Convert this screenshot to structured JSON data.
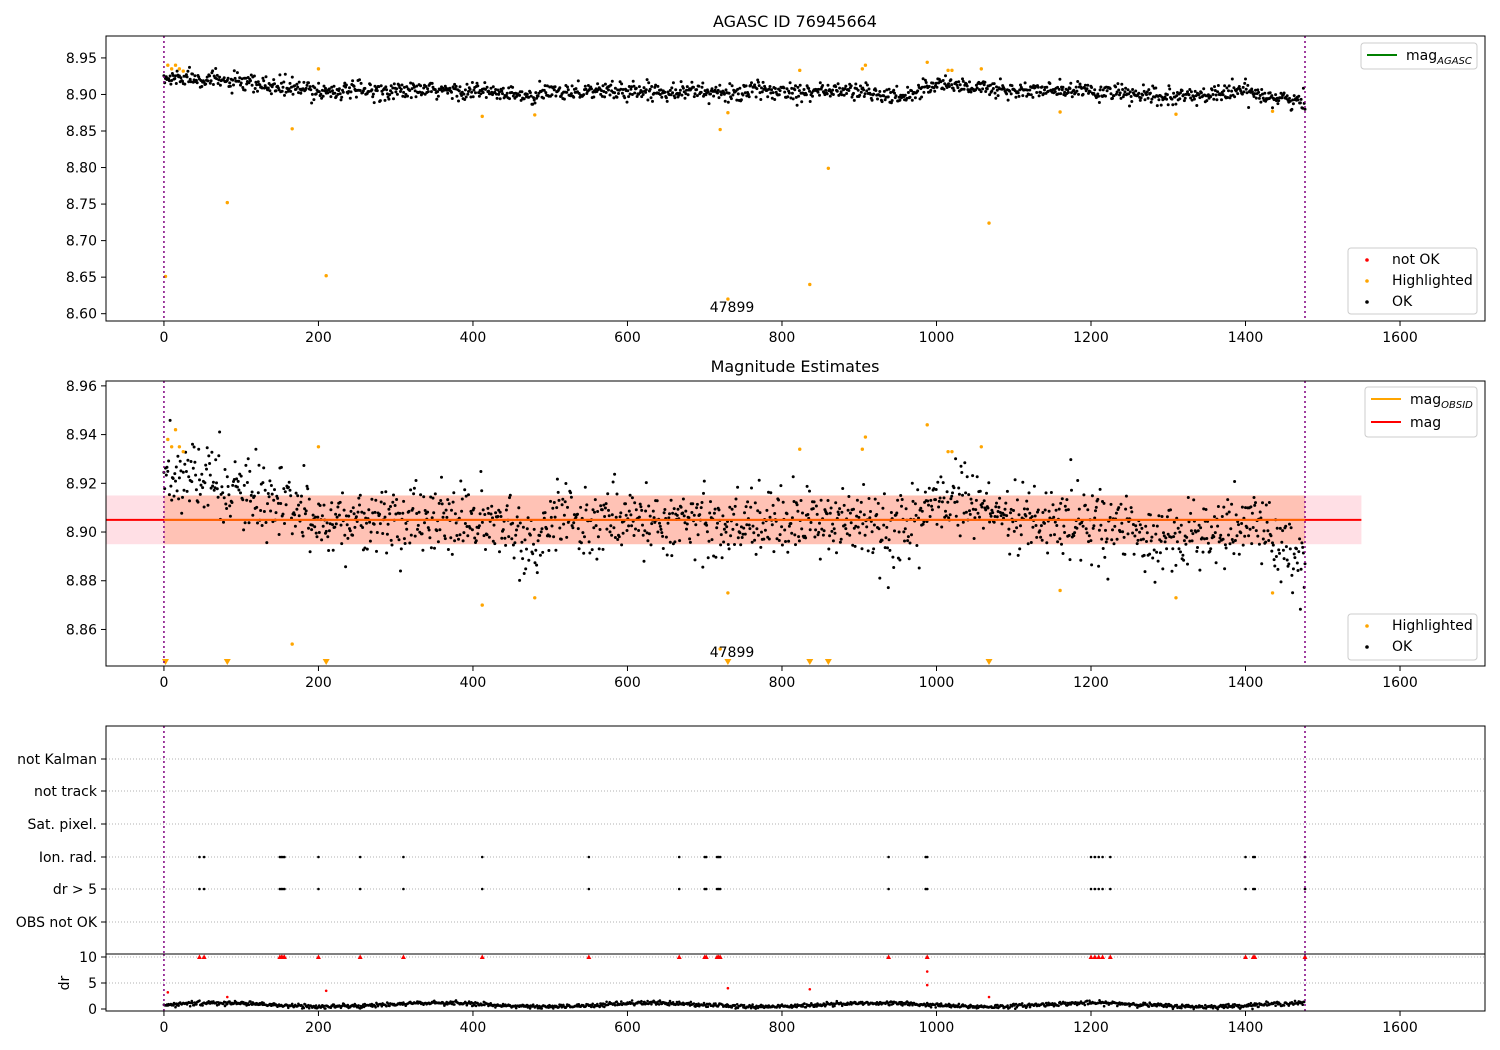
{
  "chart_data": [
    {
      "type": "scatter",
      "title": "AGASC ID 76945664",
      "xlim": [
        -75,
        1710
      ],
      "ylim": [
        8.59,
        8.98
      ],
      "xticks": [
        "0",
        "200",
        "400",
        "600",
        "800",
        "1000",
        "1200",
        "1400",
        "1600"
      ],
      "yticks": [
        "8.60",
        "8.65",
        "8.70",
        "8.75",
        "8.80",
        "8.85",
        "8.90",
        "8.95"
      ],
      "obs_boundaries": [
        0,
        1477
      ],
      "obs_label": "47899",
      "legend_top": [
        {
          "label": "mag",
          "sub": "AGASC",
          "color": "#008000",
          "kind": "line"
        }
      ],
      "legend_bottom": [
        {
          "label": "not OK",
          "color": "#ff0000",
          "kind": "dot"
        },
        {
          "label": "Highlighted",
          "color": "#ffa500",
          "kind": "dot"
        },
        {
          "label": "OK",
          "color": "#000000",
          "kind": "dot"
        }
      ],
      "series": [
        {
          "name": "OK",
          "color": "#000000",
          "n": 1477,
          "x_range": [
            0,
            1477
          ],
          "trend_x": [
            0,
            30,
            100,
            200,
            300,
            400,
            450,
            480,
            500,
            600,
            700,
            720,
            760,
            900,
            950,
            1000,
            1100,
            1200,
            1300,
            1400,
            1477
          ],
          "trend_y": [
            8.92,
            8.925,
            8.915,
            8.905,
            8.905,
            8.905,
            8.9,
            8.895,
            8.905,
            8.905,
            8.905,
            8.9,
            8.905,
            8.905,
            8.895,
            8.915,
            8.905,
            8.905,
            8.895,
            8.905,
            8.888
          ],
          "noise": 0.006
        },
        {
          "name": "Highlighted",
          "color": "#ffa500",
          "points": [
            [
              2,
              8.651
            ],
            [
              5,
              8.94
            ],
            [
              10,
              8.935
            ],
            [
              15,
              8.94
            ],
            [
              20,
              8.935
            ],
            [
              25,
              8.932
            ],
            [
              82,
              8.752
            ],
            [
              166,
              8.853
            ],
            [
              200,
              8.935
            ],
            [
              210,
              8.652
            ],
            [
              412,
              8.87
            ],
            [
              480,
              8.872
            ],
            [
              720,
              8.852
            ],
            [
              730,
              8.875
            ],
            [
              730,
              8.62
            ],
            [
              823,
              8.933
            ],
            [
              836,
              8.64
            ],
            [
              860,
              8.799
            ],
            [
              904,
              8.935
            ],
            [
              908,
              8.94
            ],
            [
              988,
              8.944
            ],
            [
              1015,
              8.933
            ],
            [
              1020,
              8.933
            ],
            [
              1058,
              8.935
            ],
            [
              1068,
              8.724
            ],
            [
              1160,
              8.876
            ],
            [
              1310,
              8.873
            ],
            [
              1435,
              8.877
            ]
          ]
        }
      ]
    },
    {
      "type": "scatter",
      "title": "Magnitude Estimates",
      "xlim": [
        -75,
        1710
      ],
      "ylim": [
        8.845,
        8.962
      ],
      "xticks": [
        "0",
        "200",
        "400",
        "600",
        "800",
        "1000",
        "1200",
        "1400",
        "1600"
      ],
      "yticks": [
        "8.86",
        "8.88",
        "8.90",
        "8.92",
        "8.94",
        "8.96"
      ],
      "obs_boundaries": [
        0,
        1477
      ],
      "obs_label": "47899",
      "mag_line": 8.905,
      "band_outer": [
        8.895,
        8.915
      ],
      "band_outer_x": [
        -75,
        1550
      ],
      "band_inner": [
        8.895,
        8.915
      ],
      "band_inner_x": [
        0,
        1477
      ],
      "legend_top": [
        {
          "label": "mag",
          "sub": "OBSID",
          "color": "#ffa500",
          "kind": "line"
        },
        {
          "label": "mag",
          "sub": "",
          "color": "#ff0000",
          "kind": "line"
        }
      ],
      "legend_bottom": [
        {
          "label": "Highlighted",
          "color": "#ffa500",
          "kind": "dot"
        },
        {
          "label": "OK",
          "color": "#000000",
          "kind": "dot"
        }
      ],
      "series": [
        {
          "name": "OK",
          "color": "#000000",
          "n": 1477,
          "x_range": [
            0,
            1477
          ],
          "trend_x": [
            0,
            30,
            100,
            200,
            300,
            400,
            450,
            480,
            500,
            600,
            700,
            720,
            760,
            900,
            950,
            1000,
            1100,
            1200,
            1300,
            1400,
            1477
          ],
          "trend_y": [
            8.92,
            8.925,
            8.915,
            8.905,
            8.905,
            8.905,
            8.9,
            8.895,
            8.905,
            8.905,
            8.905,
            8.9,
            8.905,
            8.905,
            8.895,
            8.915,
            8.905,
            8.905,
            8.895,
            8.905,
            8.888
          ],
          "noise": 0.007
        },
        {
          "name": "Highlighted",
          "color": "#ffa500",
          "points": [
            [
              5,
              8.938
            ],
            [
              10,
              8.935
            ],
            [
              15,
              8.942
            ],
            [
              20,
              8.935
            ],
            [
              25,
              8.933
            ],
            [
              166,
              8.854
            ],
            [
              200,
              8.935
            ],
            [
              412,
              8.87
            ],
            [
              480,
              8.873
            ],
            [
              720,
              8.852
            ],
            [
              730,
              8.875
            ],
            [
              823,
              8.934
            ],
            [
              904,
              8.934
            ],
            [
              908,
              8.939
            ],
            [
              988,
              8.944
            ],
            [
              1015,
              8.933
            ],
            [
              1020,
              8.933
            ],
            [
              1058,
              8.935
            ],
            [
              1160,
              8.876
            ],
            [
              1310,
              8.873
            ],
            [
              1435,
              8.875
            ]
          ]
        },
        {
          "name": "Highlighted (below range)",
          "color": "#ffa500",
          "marker": "triangle-down",
          "x": [
            2,
            82,
            210,
            730,
            836,
            860,
            1068
          ]
        }
      ]
    },
    {
      "type": "scatter",
      "title": "",
      "xlim": [
        -75,
        1710
      ],
      "xticks": [
        "0",
        "200",
        "400",
        "600",
        "800",
        "1000",
        "1200",
        "1400",
        "1600"
      ],
      "flag_rows": [
        "not Kalman",
        "not track",
        "Sat. pixel.",
        "Ion. rad.",
        "dr > 5",
        "OBS not OK"
      ],
      "flag_times": [
        46,
        52,
        150,
        152,
        154,
        156,
        200,
        254,
        310,
        412,
        550,
        667,
        700,
        702,
        716,
        718,
        720,
        938,
        986,
        988,
        1200,
        1205,
        1210,
        1215,
        1225,
        1400,
        1410,
        1412,
        1477
      ],
      "flag_rows_set": [
        "Ion. rad.",
        "dr > 5"
      ],
      "dr": {
        "ylabel": "dr",
        "ylim": [
          0,
          10
        ],
        "yticks": [
          "0",
          "5",
          "10"
        ],
        "baseline": 0.8,
        "n": 1477,
        "high_points": [
          [
            5,
            3.2
          ],
          [
            82,
            2.3
          ],
          [
            210,
            3.5
          ],
          [
            730,
            4.0
          ],
          [
            836,
            3.8
          ],
          [
            988,
            7.2
          ],
          [
            988,
            4.6
          ],
          [
            1068,
            2.3
          ]
        ],
        "clipped_red_x": [
          46,
          52,
          150,
          152,
          154,
          156,
          200,
          254,
          310,
          412,
          550,
          667,
          700,
          702,
          716,
          718,
          720,
          938,
          988,
          1200,
          1205,
          1210,
          1215,
          1225,
          1400,
          1410,
          1412,
          1477
        ]
      }
    }
  ]
}
